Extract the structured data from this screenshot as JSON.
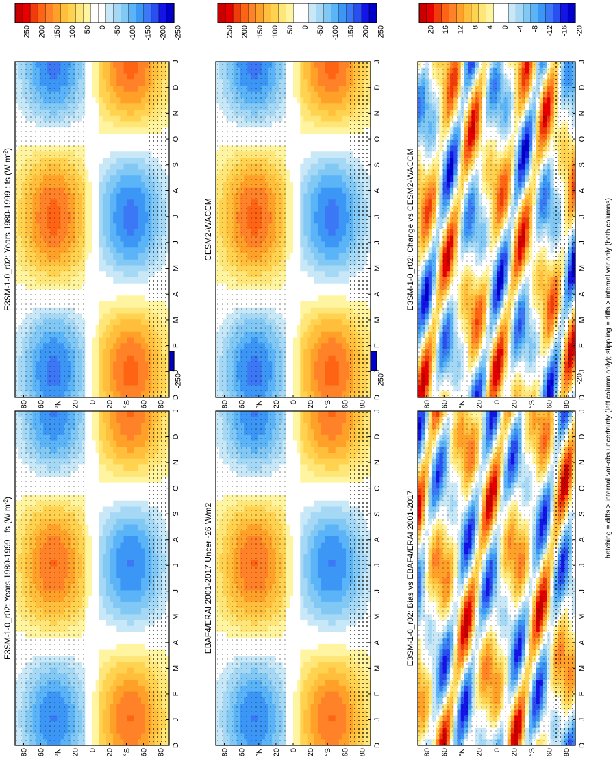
{
  "figure": {
    "footnote": "hatching = diffs > internal var-obs uncertainty (left column only); stippling = diffs > internal var only (both columns)"
  },
  "chart_data": [
    {
      "type": "heatmap",
      "panel": "top-left",
      "title": "E3SM-1-0_r02: Years 1980-1999 : fs (W m",
      "title_sup": "-2",
      "title_close": ")",
      "months": [
        "D",
        "J",
        "F",
        "M",
        "A",
        "M",
        "J",
        "J",
        "A",
        "S",
        "O",
        "N",
        "D",
        "J"
      ],
      "lat_labels": [
        "80",
        "60",
        "°N",
        "20",
        "0",
        "20",
        "°S",
        "60",
        "80"
      ],
      "colorbar": [
        "250",
        "200",
        "150",
        "100",
        "50",
        "0",
        "-50",
        "-100",
        "-150",
        "-200",
        "-250"
      ],
      "levels": [
        -275,
        275
      ],
      "stipple": true,
      "hatch": true
    },
    {
      "type": "heatmap",
      "panel": "top-right",
      "title": "E3SM-1-0_r02: Years 1980-1999 : fs (W m",
      "title_sup": "-2",
      "title_close": ")",
      "months": [
        "D",
        "J",
        "F",
        "M",
        "A",
        "M",
        "J",
        "J",
        "A",
        "S",
        "O",
        "N",
        "D",
        "J"
      ],
      "lat_labels": [
        "80",
        "60",
        "°N",
        "20",
        "0",
        "20",
        "°S",
        "60",
        "80"
      ],
      "colorbar": [
        "250",
        "200",
        "150",
        "100",
        "50",
        "0",
        "-50",
        "-100",
        "-150",
        "-200",
        "-250"
      ],
      "levels": [
        -275,
        275
      ],
      "stipple": true,
      "hatch": false
    },
    {
      "type": "heatmap",
      "panel": "middle-left",
      "title": "EBAF4/ERAI 2001-2017 Uncer~26 W/m2",
      "title_sup": "",
      "title_close": "",
      "months": [
        "D",
        "J",
        "F",
        "M",
        "A",
        "M",
        "J",
        "J",
        "A",
        "S",
        "O",
        "N",
        "D",
        "J"
      ],
      "lat_labels": [
        "80",
        "60",
        "°N",
        "20",
        "0",
        "20",
        "°S",
        "60",
        "80"
      ],
      "colorbar": [
        "250",
        "200",
        "150",
        "100",
        "50",
        "0",
        "-50",
        "-100",
        "-150",
        "-200",
        "-250"
      ],
      "levels": [
        -275,
        275
      ],
      "stipple": true,
      "hatch": true
    },
    {
      "type": "heatmap",
      "panel": "middle-right",
      "title": "CESM2-WACCM",
      "title_sup": "",
      "title_close": "",
      "months": [
        "D",
        "J",
        "F",
        "M",
        "A",
        "M",
        "J",
        "J",
        "A",
        "S",
        "O",
        "N",
        "D",
        "J"
      ],
      "lat_labels": [
        "80",
        "60",
        "°N",
        "20",
        "0",
        "20",
        "°S",
        "60",
        "80"
      ],
      "colorbar": [
        "250",
        "200",
        "150",
        "100",
        "50",
        "0",
        "-50",
        "-100",
        "-150",
        "-200",
        "-250"
      ],
      "levels": [
        -275,
        275
      ],
      "stipple": true,
      "hatch": false
    },
    {
      "type": "heatmap",
      "panel": "bottom-left",
      "title": "E3SM-1-0_r02: Bias vs EBAF4/ERAI 2001-2017",
      "title_sup": "",
      "title_close": "",
      "months": [
        "D",
        "J",
        "F",
        "M",
        "A",
        "M",
        "J",
        "J",
        "A",
        "S",
        "O",
        "N",
        "D",
        "J"
      ],
      "lat_labels": [
        "80",
        "60",
        "°N",
        "20",
        "0",
        "20",
        "°S",
        "60",
        "80"
      ],
      "colorbar": [
        "20",
        "16",
        "12",
        "8",
        "4",
        "0",
        "-4",
        "-8",
        "-12",
        "-16",
        "-20"
      ],
      "levels": [
        -22,
        22
      ],
      "stipple": true,
      "hatch": true
    },
    {
      "type": "heatmap",
      "panel": "bottom-right",
      "title": "E3SM-1-0_r02: Change vs CESM2-WACCM",
      "title_sup": "",
      "title_close": "",
      "months": [
        "D",
        "J",
        "F",
        "M",
        "A",
        "M",
        "J",
        "J",
        "A",
        "S",
        "O",
        "N",
        "D",
        "J"
      ],
      "lat_labels": [
        "80",
        "60",
        "°N",
        "20",
        "0",
        "20",
        "°S",
        "60",
        "80"
      ],
      "colorbar": [
        "20",
        "16",
        "12",
        "8",
        "4",
        "0",
        "-4",
        "-8",
        "-12",
        "-16",
        "-20"
      ],
      "levels": [
        -22,
        22
      ],
      "stipple": true,
      "hatch": false
    }
  ],
  "colors": {
    "scale": [
      "#0000c8",
      "#1414e6",
      "#2a4ff0",
      "#3c78f5",
      "#3c96f5",
      "#5ab4f7",
      "#82c8f5",
      "#a5d8f5",
      "#c8e8f8",
      "#ffffff",
      "#ffffff",
      "#fff5a0",
      "#ffe678",
      "#ffd250",
      "#ffbe3c",
      "#ffa028",
      "#ff8228",
      "#ff6414",
      "#f03c0a",
      "#e60000",
      "#c80000"
    ]
  }
}
